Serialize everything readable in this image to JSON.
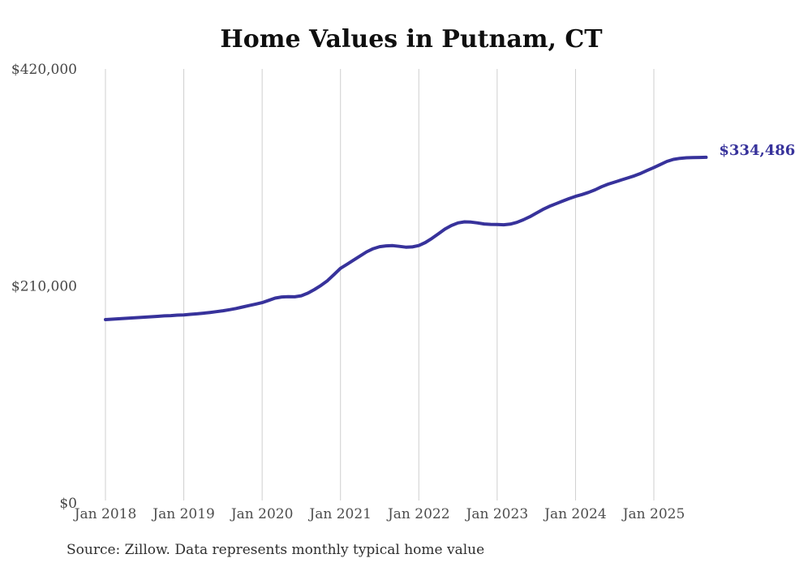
{
  "page": {
    "title": "Home Values in Putnam, CT",
    "source_note": "Source: Zillow. Data represents monthly typical home value"
  },
  "colors": {
    "line": "#37329b",
    "grid": "#cfcfcf",
    "title_text": "#0f0f0f",
    "tick_text": "#4d4d4d",
    "background": "#ffffff"
  },
  "chart_data": {
    "type": "line",
    "title": "Home Values in Putnam, CT",
    "xlabel": "",
    "ylabel": "",
    "ylim": [
      0,
      420000
    ],
    "y_ticks": [
      0,
      210000,
      420000
    ],
    "y_tick_labels": [
      "$0",
      "$210,000",
      "$420,000"
    ],
    "x_tick_labels": [
      "Jan 2018",
      "Jan 2019",
      "Jan 2020",
      "Jan 2021",
      "Jan 2022",
      "Jan 2023",
      "Jan 2024",
      "Jan 2025"
    ],
    "grid": "vertical-only",
    "legend_position": "none",
    "end_value_label": "$334,486",
    "final_value": 334486,
    "source_note": "Source: Zillow. Data represents monthly typical home value",
    "series": [
      {
        "name": "Monthly typical home value",
        "start_month": "2018-01",
        "end_month": "2025-09",
        "months_per_point": 1,
        "values": [
          177400,
          177800,
          178200,
          178600,
          179000,
          179400,
          179800,
          180200,
          180600,
          181000,
          181300,
          181700,
          182000,
          182500,
          183000,
          183600,
          184300,
          185100,
          186000,
          187000,
          188200,
          189600,
          191000,
          192400,
          193800,
          196000,
          198200,
          199300,
          199600,
          199500,
          200500,
          203000,
          206500,
          210500,
          215000,
          221000,
          227000,
          231000,
          235000,
          239000,
          243000,
          246000,
          248000,
          248800,
          249000,
          248300,
          247500,
          247800,
          249100,
          252000,
          256000,
          260500,
          265000,
          268500,
          271000,
          272000,
          271800,
          271000,
          270000,
          269600,
          269500,
          269200,
          269800,
          271500,
          274000,
          277000,
          280500,
          284000,
          287000,
          289500,
          292000,
          294500,
          296700,
          298500,
          300500,
          303000,
          306000,
          308500,
          310500,
          312500,
          314500,
          316500,
          319000,
          321800,
          324500,
          327500,
          330500,
          332500,
          333500,
          334000,
          334200,
          334350,
          334486
        ]
      }
    ]
  }
}
